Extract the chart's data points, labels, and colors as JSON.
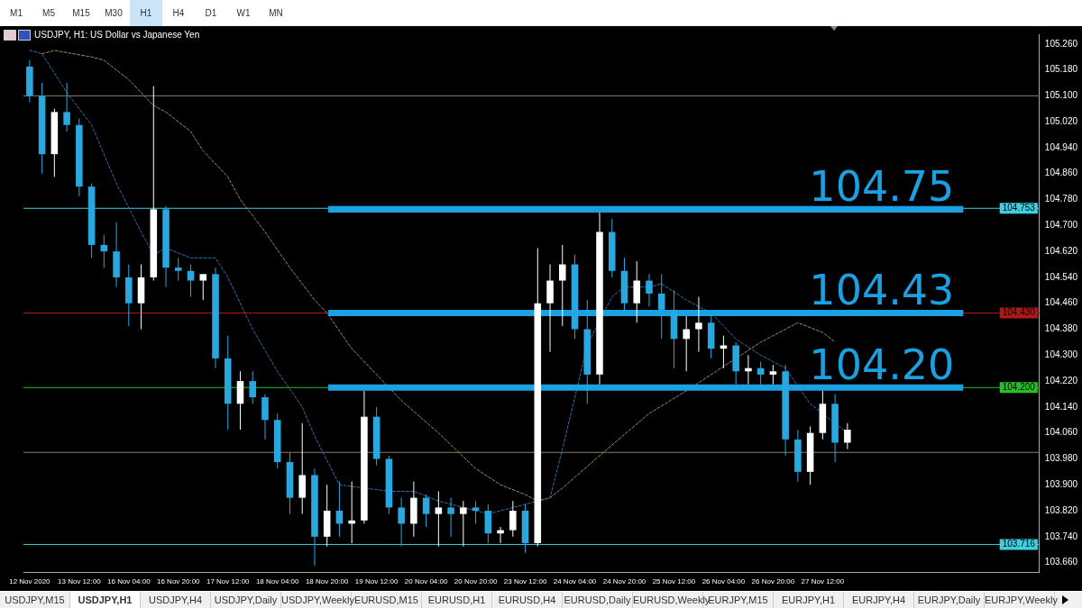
{
  "chart_data": {
    "type": "candlestick",
    "title": "USDJPY, H1:  US Dollar vs Japanese Yen",
    "categories": [
      "12 Nov 2020",
      null,
      null,
      null,
      "13 Nov 12:00",
      null,
      null,
      null,
      "16 Nov 04:00",
      null,
      null,
      null,
      "16 Nov 20:00",
      null,
      null,
      null,
      "17 Nov 12:00",
      null,
      null,
      null,
      "18 Nov 04:00",
      null,
      null,
      null,
      "18 Nov 20:00",
      null,
      null,
      null,
      "19 Nov 12:00",
      null,
      null,
      null,
      "20 Nov 04:00",
      null,
      null,
      null,
      "20 Nov 20:00",
      null,
      null,
      null,
      "23 Nov 12:00",
      null,
      null,
      null,
      "24 Nov 04:00",
      null,
      null,
      null,
      "24 Nov 20:00",
      null,
      null,
      null,
      "25 Nov 12:00",
      null,
      null,
      null,
      "26 Nov 04:00",
      null,
      null,
      null,
      "26 Nov 20:00",
      null,
      null,
      null,
      "27 Nov 12:00",
      null,
      null,
      null,
      null,
      null,
      null,
      null,
      null,
      null,
      null,
      null,
      null,
      null,
      null,
      null,
      null,
      null
    ],
    "ohlc": [
      [
        105.19,
        105.21,
        105.08,
        105.1
      ],
      [
        105.1,
        105.14,
        104.86,
        104.92
      ],
      [
        104.92,
        105.06,
        104.85,
        105.05
      ],
      [
        105.05,
        105.14,
        104.99,
        105.01
      ],
      [
        105.01,
        105.03,
        104.79,
        104.82
      ],
      [
        104.82,
        104.83,
        104.6,
        104.64
      ],
      [
        104.64,
        104.67,
        104.57,
        104.62
      ],
      [
        104.62,
        104.71,
        104.51,
        104.54
      ],
      [
        104.54,
        104.58,
        104.39,
        104.46
      ],
      [
        104.46,
        104.58,
        104.38,
        104.54
      ],
      [
        104.54,
        105.13,
        104.53,
        104.75
      ],
      [
        104.75,
        104.76,
        104.51,
        104.57
      ],
      [
        104.57,
        104.6,
        104.53,
        104.56
      ],
      [
        104.56,
        104.58,
        104.48,
        104.53
      ],
      [
        104.53,
        104.55,
        104.47,
        104.55
      ],
      [
        104.55,
        104.57,
        104.26,
        104.29
      ],
      [
        104.29,
        104.36,
        104.07,
        104.15
      ],
      [
        104.15,
        104.25,
        104.07,
        104.22
      ],
      [
        104.22,
        104.25,
        104.15,
        104.17
      ],
      [
        104.17,
        104.18,
        104.04,
        104.1
      ],
      [
        104.1,
        104.12,
        103.95,
        103.97
      ],
      [
        103.97,
        104.0,
        103.81,
        103.86
      ],
      [
        103.86,
        104.09,
        103.81,
        103.93
      ],
      [
        103.93,
        103.95,
        103.65,
        103.74
      ],
      [
        103.74,
        103.9,
        103.71,
        103.82
      ],
      [
        103.82,
        103.91,
        103.74,
        103.78
      ],
      [
        103.78,
        103.91,
        103.72,
        103.79
      ],
      [
        103.79,
        104.19,
        103.78,
        104.11
      ],
      [
        104.11,
        104.14,
        103.96,
        103.98
      ],
      [
        103.98,
        103.99,
        103.81,
        103.83
      ],
      [
        103.83,
        103.86,
        103.71,
        103.78
      ],
      [
        103.78,
        103.91,
        103.74,
        103.86
      ],
      [
        103.86,
        103.87,
        103.77,
        103.81
      ],
      [
        103.81,
        103.88,
        103.71,
        103.83
      ],
      [
        103.83,
        103.86,
        103.74,
        103.81
      ],
      [
        103.81,
        103.85,
        103.71,
        103.83
      ],
      [
        103.83,
        103.85,
        103.78,
        103.82
      ],
      [
        103.82,
        103.84,
        103.72,
        103.75
      ],
      [
        103.75,
        103.77,
        103.72,
        103.76
      ],
      [
        103.76,
        103.85,
        103.74,
        103.82
      ],
      [
        103.82,
        103.84,
        103.69,
        103.72
      ],
      [
        103.72,
        104.63,
        103.71,
        104.46
      ],
      [
        104.46,
        104.58,
        104.31,
        104.53
      ],
      [
        104.53,
        104.64,
        104.39,
        104.58
      ],
      [
        104.58,
        104.61,
        104.35,
        104.38
      ],
      [
        104.38,
        104.47,
        104.15,
        104.24
      ],
      [
        104.24,
        104.74,
        104.21,
        104.68
      ],
      [
        104.68,
        104.72,
        104.54,
        104.56
      ],
      [
        104.56,
        104.6,
        104.43,
        104.46
      ],
      [
        104.46,
        104.59,
        104.4,
        104.53
      ],
      [
        104.53,
        104.55,
        104.45,
        104.49
      ],
      [
        104.49,
        104.55,
        104.35,
        104.44
      ],
      [
        104.44,
        104.5,
        104.26,
        104.35
      ],
      [
        104.35,
        104.42,
        104.25,
        104.38
      ],
      [
        104.38,
        104.48,
        104.31,
        104.4
      ],
      [
        104.4,
        104.43,
        104.29,
        104.32
      ],
      [
        104.32,
        104.36,
        104.26,
        104.33
      ],
      [
        104.33,
        104.34,
        104.21,
        104.25
      ],
      [
        104.25,
        104.3,
        104.21,
        104.26
      ],
      [
        104.26,
        104.28,
        104.21,
        104.24
      ],
      [
        104.24,
        104.27,
        104.21,
        104.25
      ],
      [
        104.25,
        104.27,
        103.99,
        104.04
      ],
      [
        104.04,
        104.07,
        103.91,
        103.94
      ],
      [
        103.94,
        104.08,
        103.9,
        104.06
      ],
      [
        104.06,
        104.19,
        104.04,
        104.15
      ],
      [
        104.15,
        104.18,
        103.97,
        104.03
      ],
      [
        104.03,
        104.09,
        104.01,
        104.07
      ],
      null,
      null,
      null,
      null,
      null,
      null,
      null,
      null,
      null,
      null,
      null,
      null,
      null,
      null,
      null
    ],
    "colors": [
      "#29a8e0",
      "#29a8e0",
      "#ffffff",
      "#29a8e0",
      "#29a8e0",
      "#29a8e0",
      "#29a8e0",
      "#29a8e0",
      "#29a8e0",
      "#ffffff",
      "#ffffff",
      "#29a8e0",
      "#29a8e0",
      "#29a8e0",
      "#ffffff",
      "#29a8e0",
      "#29a8e0",
      "#ffffff",
      "#29a8e0",
      "#29a8e0",
      "#29a8e0",
      "#29a8e0",
      "#ffffff",
      "#29a8e0",
      "#ffffff",
      "#29a8e0",
      "#ffffff",
      "#ffffff",
      "#29a8e0",
      "#29a8e0",
      "#29a8e0",
      "#ffffff",
      "#29a8e0",
      "#ffffff",
      "#29a8e0",
      "#ffffff",
      "#29a8e0",
      "#29a8e0",
      "#ffffff",
      "#ffffff",
      "#29a8e0",
      "#ffffff",
      "#ffffff",
      "#ffffff",
      "#29a8e0",
      "#29a8e0",
      "#ffffff",
      "#29a8e0",
      "#29a8e0",
      "#ffffff",
      "#29a8e0",
      "#29a8e0",
      "#29a8e0",
      "#ffffff",
      "#ffffff",
      "#29a8e0",
      "#ffffff",
      "#29a8e0",
      "#ffffff",
      "#29a8e0",
      "#ffffff",
      "#29a8e0",
      "#29a8e0",
      "#ffffff",
      "#ffffff",
      "#29a8e0",
      "#ffffff",
      null,
      null,
      null,
      null,
      null,
      null,
      null,
      null,
      null,
      null,
      null,
      null,
      null,
      null,
      null
    ],
    "series": [
      {
        "type": "line",
        "color": "#2f6fb0",
        "line_style": "dashed",
        "values": [
          105.24,
          105.23,
          null,
          105.11,
          null,
          105.01,
          null,
          104.83,
          null,
          104.68,
          104.61,
          104.63,
          null,
          104.6,
          null,
          104.6,
          104.54,
          null,
          104.38,
          null,
          104.25,
          null,
          104.14,
          104.05,
          null,
          103.9,
          null,
          null,
          null,
          103.88,
          null,
          103.88,
          null,
          103.85,
          null,
          103.83,
          null,
          103.81,
          null,
          null,
          null,
          null,
          103.86,
          104.01,
          null,
          104.33,
          null,
          104.48,
          104.51,
          null,
          104.51,
          104.52,
          null,
          104.47,
          null,
          104.43,
          null,
          104.35,
          null,
          104.3,
          null,
          104.26,
          null,
          104.15,
          null,
          104.09,
          104.06,
          null,
          null,
          null,
          null,
          null,
          null,
          null,
          null,
          null,
          null,
          null,
          null,
          null,
          null,
          null
        ]
      },
      {
        "type": "line",
        "color": "#a08a60",
        "line_style": "dashed",
        "values": [
          null,
          105.23,
          105.24,
          null,
          null,
          105.22,
          105.21,
          null,
          105.15,
          null,
          105.07,
          105.05,
          null,
          104.99,
          104.93,
          null,
          104.85,
          104.78,
          null,
          104.68,
          null,
          104.57,
          null,
          104.47,
          104.43,
          null,
          104.32,
          null,
          104.24,
          null,
          104.16,
          null,
          null,
          104.06,
          null,
          null,
          103.95,
          null,
          103.9,
          null,
          103.87,
          103.85,
          103.86,
          103.89,
          null,
          null,
          103.99,
          null,
          null,
          null,
          104.12,
          null,
          null,
          104.19,
          null,
          null,
          null,
          104.29,
          null,
          104.34,
          null,
          null,
          104.4,
          null,
          104.37,
          104.34,
          null,
          null,
          null,
          null,
          null,
          null,
          null,
          null,
          null,
          null,
          null,
          null,
          null,
          null,
          null,
          null
        ]
      }
    ],
    "marker": "none",
    "ylim": [
      103.63,
      105.29
    ],
    "yticks": [
      {
        "value": 105.26,
        "label": "105.260"
      },
      {
        "value": 105.18,
        "label": "105.180"
      },
      {
        "value": 105.1,
        "label": "105.100"
      },
      {
        "value": 105.02,
        "label": "105.020"
      },
      {
        "value": 104.94,
        "label": "104.940"
      },
      {
        "value": 104.86,
        "label": "104.860"
      },
      {
        "value": 104.78,
        "label": "104.780"
      },
      {
        "value": 104.7,
        "label": "104.700"
      },
      {
        "value": 104.62,
        "label": "104.620"
      },
      {
        "value": 104.54,
        "label": "104.540"
      },
      {
        "value": 104.46,
        "label": "104.460"
      },
      {
        "value": 104.38,
        "label": "104.380"
      },
      {
        "value": 104.3,
        "label": "104.300"
      },
      {
        "value": 104.22,
        "label": "104.220"
      },
      {
        "value": 104.14,
        "label": "104.140"
      },
      {
        "value": 104.06,
        "label": "104.060"
      },
      {
        "value": 103.98,
        "label": "103.980"
      },
      {
        "value": 103.9,
        "label": "103.900"
      },
      {
        "value": 103.82,
        "label": "103.820"
      },
      {
        "value": 103.74,
        "label": "103.740"
      },
      {
        "value": 103.66,
        "label": "103.660"
      }
    ],
    "ref_lines": [
      {
        "axis": "y",
        "value": 105.1,
        "color": "#8c7b5c"
      },
      {
        "axis": "y",
        "value": 104.753,
        "label": "104.753",
        "color": "#3fcfe0"
      },
      {
        "axis": "y",
        "value": 104.43,
        "label": "104.430",
        "color": "#b01818"
      },
      {
        "axis": "y",
        "value": 104.2,
        "label": "104.200",
        "color": "#25c025"
      },
      {
        "axis": "y",
        "value": 104.0,
        "color": "#8c7b5c"
      },
      {
        "axis": "y",
        "value": 103.716,
        "label": "103.716",
        "color": "#3fcfe0"
      }
    ],
    "bands": [
      {
        "axis": "y",
        "from": 104.74,
        "to": 104.76,
        "label": "104.75",
        "color": "#1ba1e2"
      },
      {
        "axis": "y",
        "from": 104.42,
        "to": 104.44,
        "label": "104.43",
        "color": "#1ba1e2"
      },
      {
        "axis": "y",
        "from": 104.19,
        "to": 104.21,
        "label": "104.20",
        "color": "#1ba1e2"
      }
    ],
    "annotations": [
      "M1",
      "M5",
      "M15",
      "M30",
      "H1",
      "H4",
      "D1",
      "W1",
      "MN",
      "USDJPY,M15",
      "USDJPY,H1",
      "USDJPY,H4",
      "USDJPY,Daily",
      "USDJPY,Weekly",
      "EURUSD,M15",
      "EURUSD,H1",
      "EURUSD,H4",
      "EURUSD,Daily",
      "EURUSD,Weekly",
      "EURJPY,M15",
      "EURJPY,H1",
      "EURJPY,H4",
      "EURJPY,Daily",
      "EURJPY,Weekly"
    ]
  }
}
